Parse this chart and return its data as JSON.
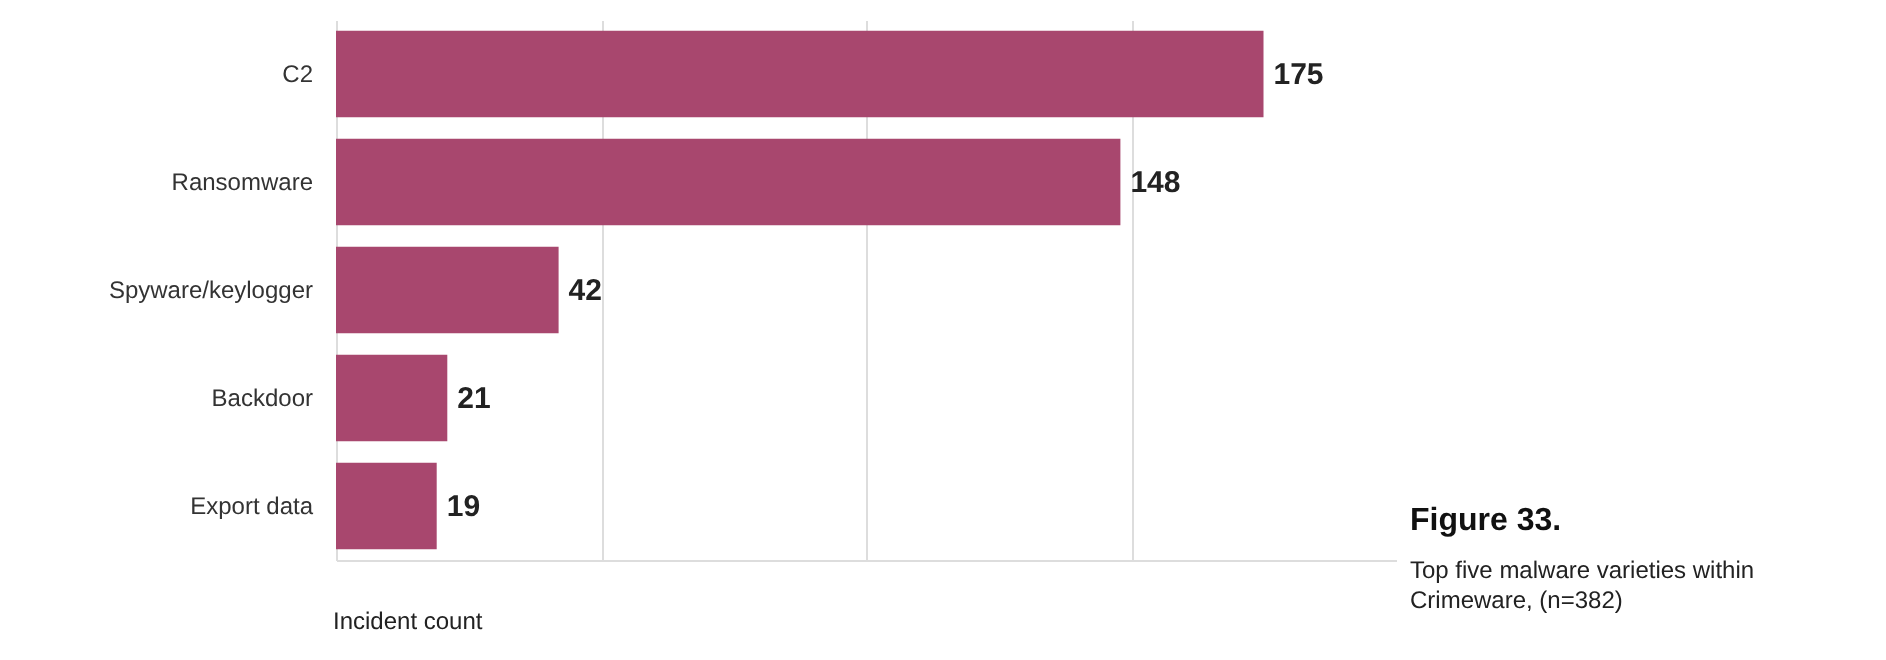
{
  "chart_data": {
    "type": "bar",
    "orientation": "horizontal",
    "title": "Figure 33.",
    "subtitle": "Top five malware varieties within Crimeware, (n=382)",
    "xlabel": "Incident count",
    "categories": [
      "C2",
      "Ransomware",
      "Spyware/keylogger",
      "Backdoor",
      "Export data"
    ],
    "values": [
      175,
      148,
      42,
      21,
      19
    ],
    "color": "#a8476e",
    "data_labels": true,
    "xlim": [
      0,
      200
    ],
    "xticks": [
      {
        "value": 0,
        "label": null
      },
      {
        "value": 50,
        "label": null
      },
      {
        "value": 100,
        "label": null
      },
      {
        "value": 150,
        "label": null
      }
    ],
    "grid": "x",
    "tick_labels": "y"
  }
}
